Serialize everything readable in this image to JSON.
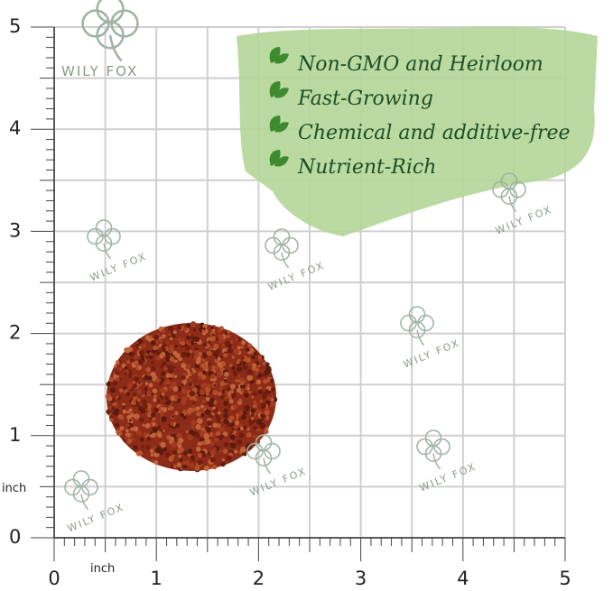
{
  "brand": "WILY FOX",
  "features": [
    "Non-GMO and Heirloom",
    "Fast-Growing",
    "Chemical and additive-free",
    "Nutrient-Rich"
  ],
  "ruler": {
    "x_labels": [
      "0",
      "1",
      "2",
      "3",
      "4",
      "5"
    ],
    "y_labels": [
      "0",
      "1",
      "2",
      "3",
      "4",
      "5"
    ],
    "x_unit": "inch",
    "y_unit": "inch"
  }
}
